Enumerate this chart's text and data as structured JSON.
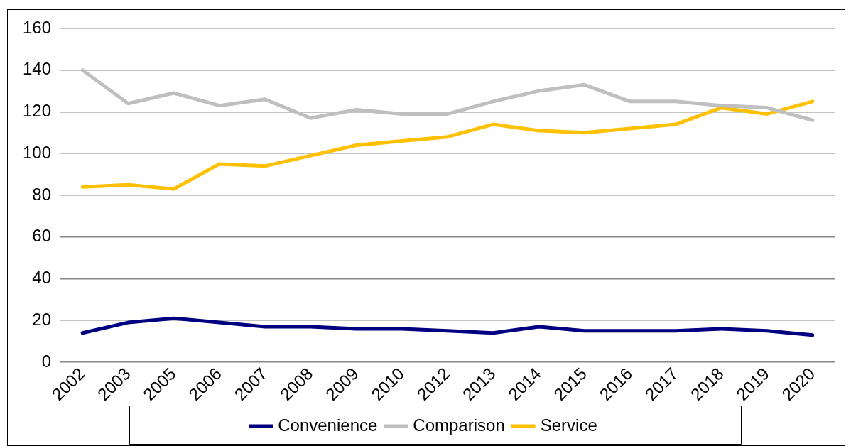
{
  "chart_data": {
    "type": "line",
    "categories": [
      "2002",
      "2003",
      "2005",
      "2006",
      "2007",
      "2008",
      "2009",
      "2010",
      "2012",
      "2013",
      "2014",
      "2015",
      "2016",
      "2017",
      "2018",
      "2019",
      "2020"
    ],
    "series": [
      {
        "name": "Convenience",
        "color": "#000080",
        "values": [
          14,
          19,
          21,
          19,
          17,
          17,
          16,
          16,
          15,
          14,
          17,
          15,
          15,
          15,
          16,
          15,
          13
        ]
      },
      {
        "name": "Comparison",
        "color": "#bfbfbf",
        "values": [
          140,
          124,
          129,
          123,
          126,
          117,
          121,
          119,
          119,
          125,
          130,
          133,
          125,
          125,
          123,
          122,
          116
        ]
      },
      {
        "name": "Service",
        "color": "#ffc000",
        "values": [
          84,
          85,
          83,
          95,
          94,
          99,
          104,
          106,
          108,
          114,
          111,
          110,
          112,
          114,
          122,
          119,
          125
        ]
      }
    ],
    "ylim": [
      0,
      160
    ],
    "yticks": [
      0,
      20,
      40,
      60,
      80,
      100,
      120,
      140,
      160
    ],
    "grid": "y",
    "legend": "bottom",
    "marker": "none",
    "line_style": "solid"
  }
}
